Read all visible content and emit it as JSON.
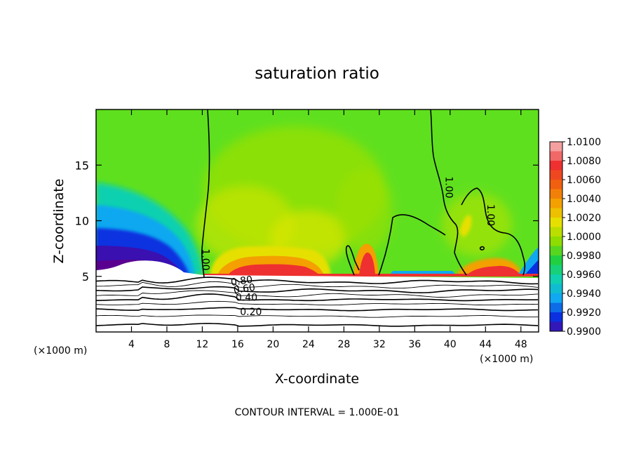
{
  "chart_data": {
    "type": "heatmap",
    "title": "saturation ratio",
    "xlabel": "X-coordinate",
    "ylabel": "Z-coordinate",
    "x_unit_left": "(×1000 m)",
    "x_unit_right": "(×1000 m)",
    "xlim": [
      0,
      50
    ],
    "ylim": [
      0,
      20
    ],
    "x_ticks": [
      4,
      8,
      12,
      16,
      20,
      24,
      28,
      32,
      36,
      40,
      44,
      48
    ],
    "y_ticks": [
      5,
      10,
      15
    ],
    "footer": "CONTOUR INTERVAL = 1.000E-01",
    "colorbar": {
      "min": 0.99,
      "max": 1.01,
      "labels": [
        "1.0100",
        "1.0080",
        "1.0060",
        "1.0040",
        "1.0020",
        "1.0000",
        "0.9980",
        "0.9960",
        "0.9940",
        "0.9920",
        "0.9900"
      ],
      "colors": [
        "#f4a0a0",
        "#ee3030",
        "#f06010",
        "#f4a000",
        "#e6e000",
        "#8edc00",
        "#20d040",
        "#10d0b0",
        "#10a8f0",
        "#0a30e0",
        "#5a0090"
      ]
    },
    "contour_labels": [
      {
        "text": "1.00",
        "x": 12,
        "z": 6.5,
        "angle": 90
      },
      {
        "text": "1.00",
        "x": 39.5,
        "z": 13,
        "angle": 90
      },
      {
        "text": "1.00",
        "x": 44.2,
        "z": 10.5,
        "angle": 90
      },
      {
        "text": "0.80",
        "x": 16.5,
        "z": 4.3,
        "angle": -8
      },
      {
        "text": "0.60",
        "x": 16.8,
        "z": 3.6,
        "angle": -8
      },
      {
        "text": "0.40",
        "x": 17.0,
        "z": 2.8,
        "angle": 0
      },
      {
        "text": "0.20",
        "x": 17.5,
        "z": 1.5,
        "angle": 0
      }
    ],
    "surface_contours_z": [
      0.6,
      1.4,
      2.0,
      2.5,
      2.9,
      3.3,
      3.7,
      4.1,
      4.5
    ]
  }
}
